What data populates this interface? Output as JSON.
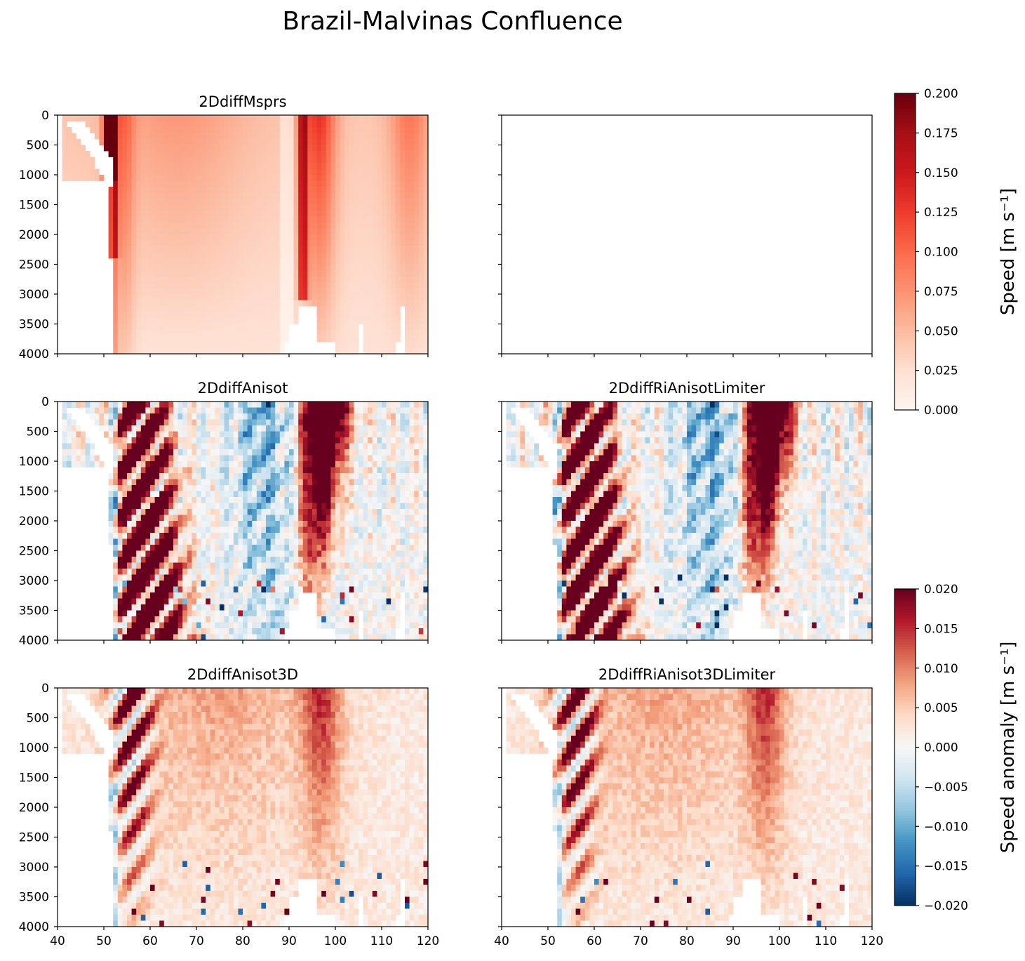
{
  "suptitle": "Brazil-Malvinas Confluence",
  "colors": {
    "reds": [
      "#fff5f0",
      "#fee0d2",
      "#fcbba1",
      "#fc9272",
      "#fb6a4a",
      "#ef3b2c",
      "#cb181d",
      "#a50f15",
      "#67000d"
    ],
    "rdbu_r": [
      "#053061",
      "#2166ac",
      "#4393c3",
      "#92c5de",
      "#d1e5f0",
      "#f7f7f7",
      "#fddbc7",
      "#f4a582",
      "#d6604d",
      "#b2182b",
      "#67001f"
    ],
    "axis": "#000000"
  },
  "chart_data": [
    {
      "type": "heatmap",
      "title": "2DdiffMsprs",
      "x_range": [
        40,
        120
      ],
      "y_range": [
        0,
        4000
      ],
      "y_inverted": true,
      "xticks": [
        "40",
        "50",
        "60",
        "70",
        "80",
        "90",
        "100",
        "110",
        "120"
      ],
      "yticks": [
        "0",
        "500",
        "1000",
        "1500",
        "2000",
        "2500",
        "3000",
        "3500",
        "4000"
      ],
      "show_xticklabels": false,
      "show_yticklabels": true,
      "colormap": "reds",
      "clim": [
        0,
        0.2
      ],
      "pattern": "speed"
    },
    {
      "type": "heatmap",
      "title": "",
      "x_range": [
        40,
        120
      ],
      "y_range": [
        0,
        4000
      ],
      "y_inverted": true,
      "xticks": [
        "40",
        "50",
        "60",
        "70",
        "80",
        "90",
        "100",
        "110",
        "120"
      ],
      "yticks": [
        "0",
        "500",
        "1000",
        "1500",
        "2000",
        "2500",
        "3000",
        "3500",
        "4000"
      ],
      "show_xticklabels": false,
      "show_yticklabels": false,
      "colormap": "none",
      "pattern": "empty"
    },
    {
      "type": "heatmap",
      "title": "2DdiffAnisot",
      "x_range": [
        40,
        120
      ],
      "y_range": [
        0,
        4000
      ],
      "y_inverted": true,
      "xticks": [
        "40",
        "50",
        "60",
        "70",
        "80",
        "90",
        "100",
        "110",
        "120"
      ],
      "yticks": [
        "0",
        "500",
        "1000",
        "1500",
        "2000",
        "2500",
        "3000",
        "3500",
        "4000"
      ],
      "show_xticklabels": false,
      "show_yticklabels": true,
      "colormap": "rdbu_r",
      "clim": [
        -0.02,
        0.02
      ],
      "pattern": "anom_strong",
      "seed": 11
    },
    {
      "type": "heatmap",
      "title": "2DdiffRiAnisotLimiter",
      "x_range": [
        40,
        120
      ],
      "y_range": [
        0,
        4000
      ],
      "y_inverted": true,
      "xticks": [
        "40",
        "50",
        "60",
        "70",
        "80",
        "90",
        "100",
        "110",
        "120"
      ],
      "yticks": [
        "0",
        "500",
        "1000",
        "1500",
        "2000",
        "2500",
        "3000",
        "3500",
        "4000"
      ],
      "show_xticklabels": false,
      "show_yticklabels": false,
      "colormap": "rdbu_r",
      "clim": [
        -0.02,
        0.02
      ],
      "pattern": "anom_strong",
      "seed": 23
    },
    {
      "type": "heatmap",
      "title": "2DdiffAnisot3D",
      "x_range": [
        40,
        120
      ],
      "y_range": [
        0,
        4000
      ],
      "y_inverted": true,
      "xticks": [
        "40",
        "50",
        "60",
        "70",
        "80",
        "90",
        "100",
        "110",
        "120"
      ],
      "yticks": [
        "0",
        "500",
        "1000",
        "1500",
        "2000",
        "2500",
        "3000",
        "3500",
        "4000"
      ],
      "show_xticklabels": true,
      "show_yticklabels": true,
      "colormap": "rdbu_r",
      "clim": [
        -0.02,
        0.02
      ],
      "pattern": "anom_weak",
      "seed": 37
    },
    {
      "type": "heatmap",
      "title": "2DdiffRiAnisot3DLimiter",
      "x_range": [
        40,
        120
      ],
      "y_range": [
        0,
        4000
      ],
      "y_inverted": true,
      "xticks": [
        "40",
        "50",
        "60",
        "70",
        "80",
        "90",
        "100",
        "110",
        "120"
      ],
      "yticks": [
        "0",
        "500",
        "1000",
        "1500",
        "2000",
        "2500",
        "3000",
        "3500",
        "4000"
      ],
      "show_xticklabels": true,
      "show_yticklabels": false,
      "colormap": "rdbu_r",
      "clim": [
        -0.02,
        0.02
      ],
      "pattern": "anom_weak",
      "seed": 53
    }
  ],
  "colorbars": [
    {
      "label": "Speed [m s⁻¹]",
      "colormap": "reds",
      "range": [
        0,
        0.2
      ],
      "ticks": [
        "0.000",
        "0.025",
        "0.050",
        "0.075",
        "0.100",
        "0.125",
        "0.150",
        "0.175",
        "0.200"
      ]
    },
    {
      "label": "Speed anomaly [m s⁻¹]",
      "colormap": "rdbu_r",
      "range": [
        -0.02,
        0.02
      ],
      "ticks": [
        "−0.020",
        "−0.015",
        "−0.010",
        "−0.005",
        "0.000",
        "0.005",
        "0.010",
        "0.015",
        "0.020"
      ]
    }
  ]
}
